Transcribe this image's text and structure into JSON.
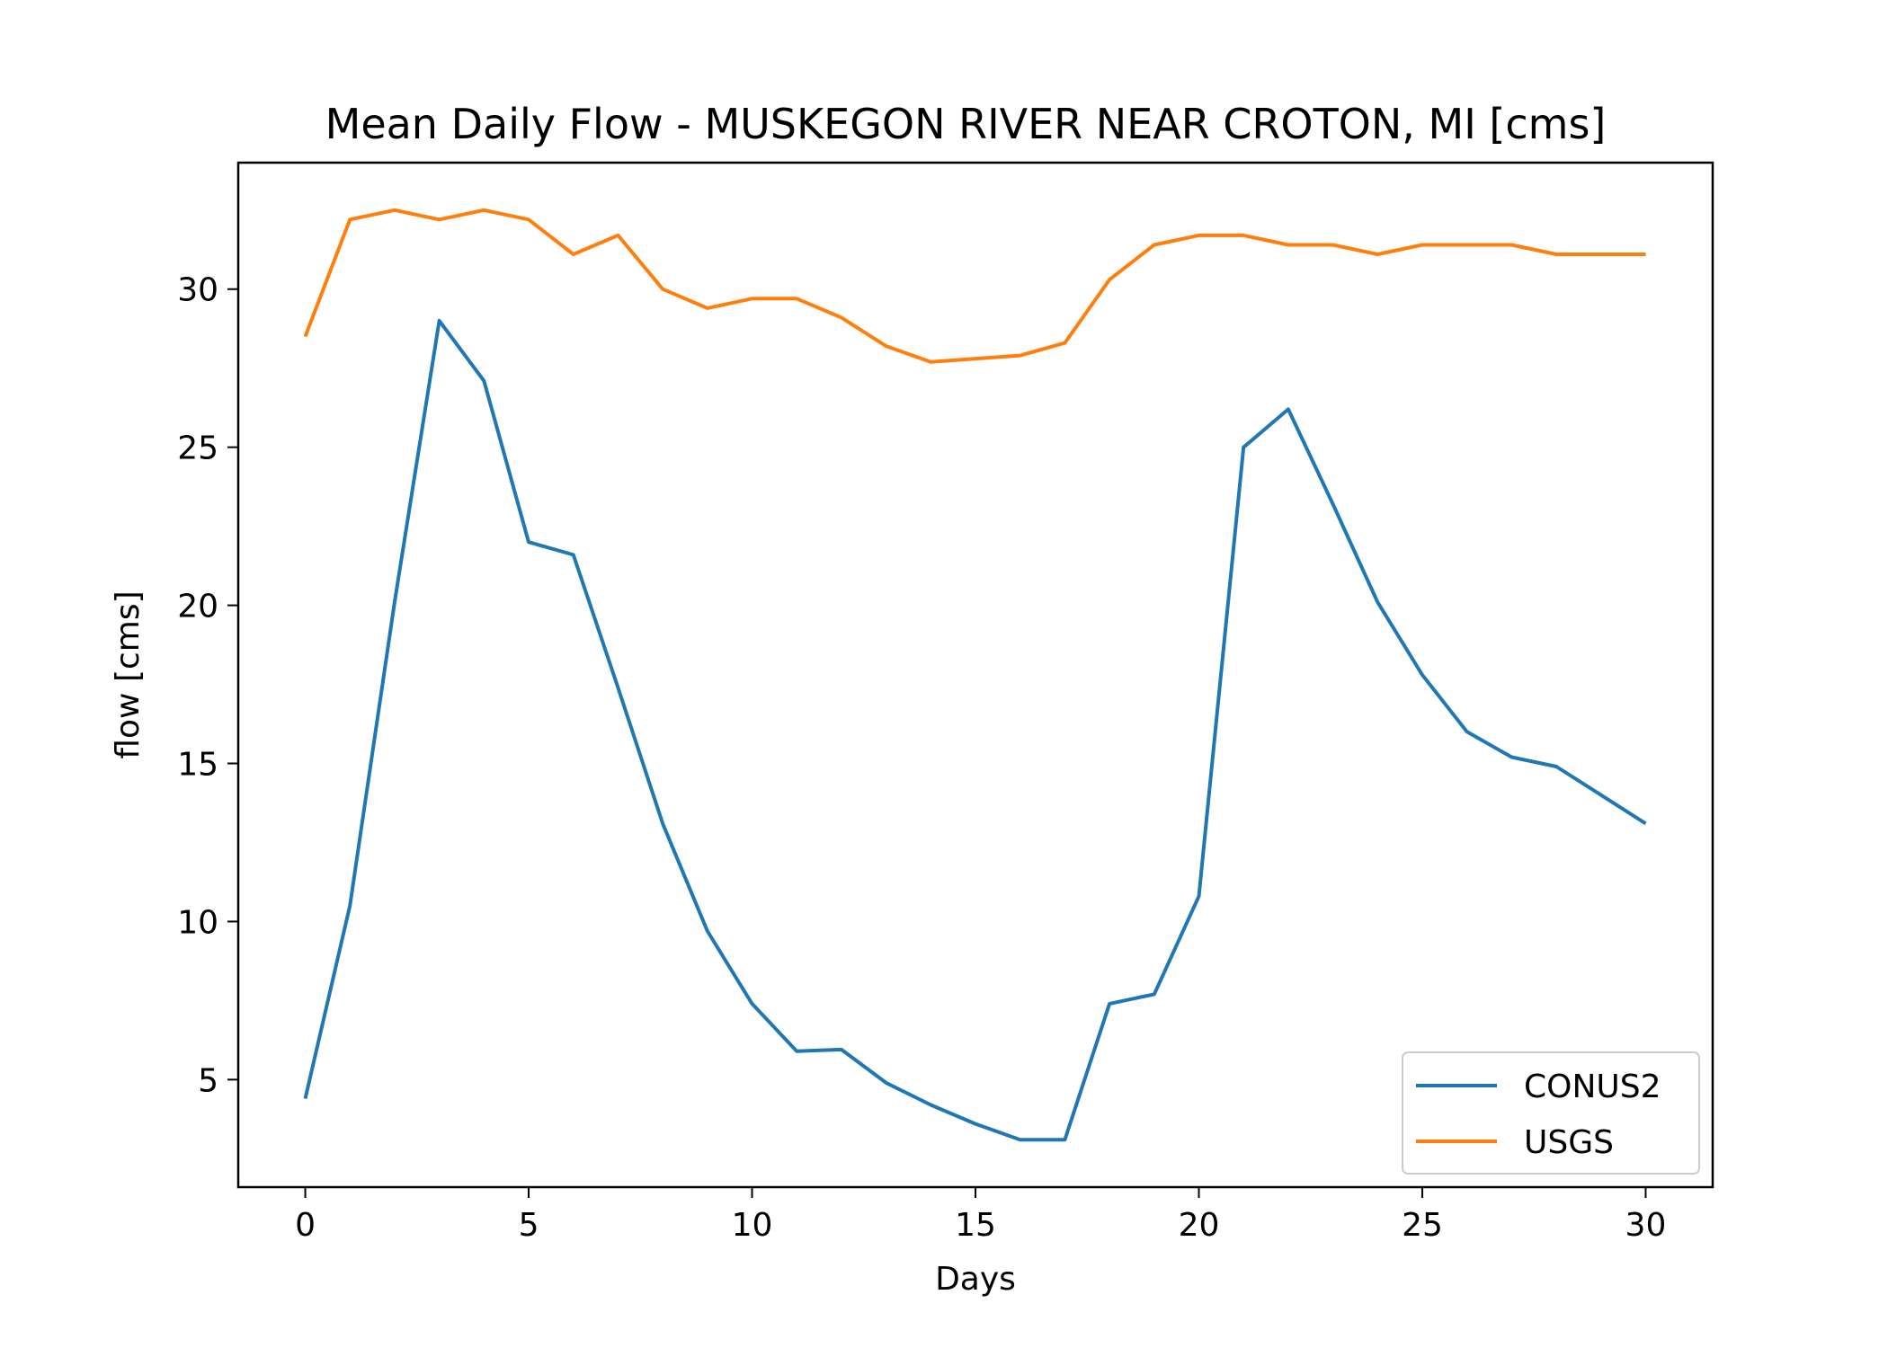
{
  "chart_data": {
    "type": "line",
    "title": "Mean Daily Flow - MUSKEGON RIVER NEAR CROTON, MI [cms]",
    "xlabel": "Days",
    "ylabel": "flow [cms]",
    "xlim": [
      -1.5,
      31.5
    ],
    "ylim": [
      1.6,
      34.0
    ],
    "xticks": [
      0,
      5,
      10,
      15,
      20,
      25,
      30
    ],
    "yticks": [
      5,
      10,
      15,
      20,
      25,
      30
    ],
    "grid": false,
    "legend_position": "lower-right",
    "x": [
      0,
      1,
      2,
      3,
      4,
      5,
      6,
      7,
      8,
      9,
      10,
      11,
      12,
      13,
      14,
      15,
      16,
      17,
      18,
      19,
      20,
      21,
      22,
      23,
      24,
      25,
      26,
      27,
      28,
      29,
      30
    ],
    "series": [
      {
        "name": "CONUS2",
        "color": "#1f77b4",
        "values": [
          4.4,
          10.5,
          20.1,
          29.0,
          27.1,
          22.0,
          21.6,
          17.4,
          13.1,
          9.7,
          7.4,
          5.9,
          5.95,
          4.9,
          4.2,
          3.6,
          3.1,
          3.1,
          7.4,
          7.7,
          10.8,
          25.0,
          26.2,
          23.2,
          20.1,
          17.8,
          16.0,
          15.2,
          14.9,
          14.0,
          13.1
        ]
      },
      {
        "name": "USGS",
        "color": "#ff7f0e",
        "values": [
          28.5,
          32.2,
          32.5,
          32.2,
          32.5,
          32.2,
          31.1,
          31.7,
          30.0,
          29.4,
          29.7,
          29.7,
          29.1,
          28.2,
          27.7,
          27.8,
          27.9,
          28.3,
          30.3,
          31.4,
          31.7,
          31.7,
          31.4,
          31.4,
          31.1,
          31.4,
          31.4,
          31.4,
          31.1,
          31.1,
          31.1
        ]
      }
    ]
  }
}
